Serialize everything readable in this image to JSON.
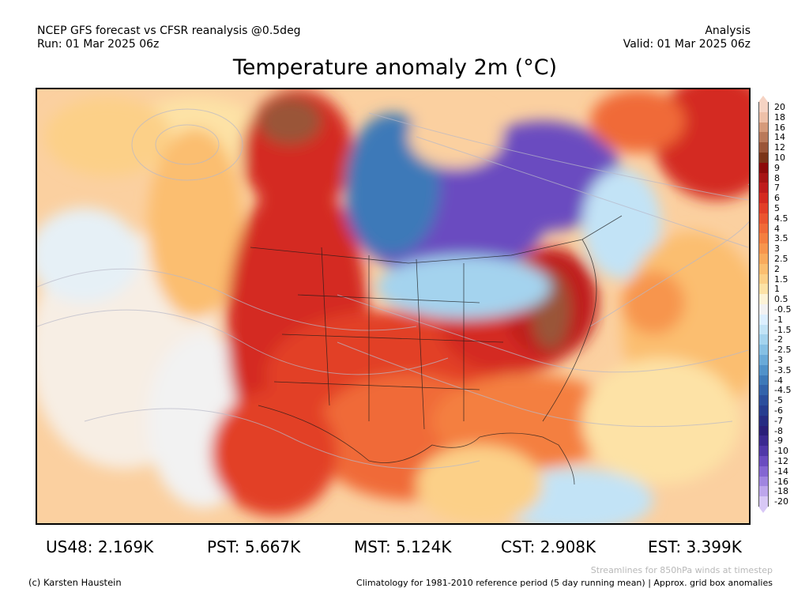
{
  "header": {
    "model_line": "NCEP GFS forecast vs CFSR reanalysis @0.5deg",
    "run_line": "Run: 01 Mar 2025 06z",
    "type_line": "Analysis",
    "valid_line": "Valid: 01 Mar 2025 06z"
  },
  "title": "Temperature anomaly 2m (°C)",
  "colorbar": {
    "levels": [
      {
        "label": "20",
        "color": "#f6d3c3"
      },
      {
        "label": "18",
        "color": "#eec0a8"
      },
      {
        "label": "16",
        "color": "#d59a7a"
      },
      {
        "label": "14",
        "color": "#b9795a"
      },
      {
        "label": "12",
        "color": "#9a5538"
      },
      {
        "label": "10",
        "color": "#7a3418"
      },
      {
        "label": "9",
        "color": "#8c0a0a"
      },
      {
        "label": "8",
        "color": "#a61414"
      },
      {
        "label": "7",
        "color": "#bf1c1c"
      },
      {
        "label": "6",
        "color": "#d42a20"
      },
      {
        "label": "5",
        "color": "#e23f28"
      },
      {
        "label": "4.5",
        "color": "#ea5530"
      },
      {
        "label": "4",
        "color": "#f06a38"
      },
      {
        "label": "3.5",
        "color": "#f47f40"
      },
      {
        "label": "3",
        "color": "#f7954d"
      },
      {
        "label": "2.5",
        "color": "#f9aa5c"
      },
      {
        "label": "2",
        "color": "#fbbe70"
      },
      {
        "label": "1.5",
        "color": "#fcd088"
      },
      {
        "label": "1",
        "color": "#fde2a6"
      },
      {
        "label": "0.5",
        "color": "#fdf3d6"
      },
      {
        "label": "-0.5",
        "color": "#f2f2f2"
      },
      {
        "label": "-1",
        "color": "#dcefff"
      },
      {
        "label": "-1.5",
        "color": "#c2e3f6"
      },
      {
        "label": "-2",
        "color": "#a4d3ee"
      },
      {
        "label": "-2.5",
        "color": "#86c0e4"
      },
      {
        "label": "-3",
        "color": "#6aaad8"
      },
      {
        "label": "-3.5",
        "color": "#5192c9"
      },
      {
        "label": "-4",
        "color": "#3e79b8"
      },
      {
        "label": "-4.5",
        "color": "#3363aa"
      },
      {
        "label": "-5",
        "color": "#2b4e9c"
      },
      {
        "label": "-6",
        "color": "#263d8f"
      },
      {
        "label": "-7",
        "color": "#262c82"
      },
      {
        "label": "-8",
        "color": "#2a1f78"
      },
      {
        "label": "-9",
        "color": "#3b2a90"
      },
      {
        "label": "-10",
        "color": "#5038a8"
      },
      {
        "label": "-12",
        "color": "#6a4cc0"
      },
      {
        "label": "-14",
        "color": "#8466d2"
      },
      {
        "label": "-16",
        "color": "#a085e0"
      },
      {
        "label": "-18",
        "color": "#bda6ec"
      },
      {
        "label": "-20",
        "color": "#d8c8f6"
      }
    ]
  },
  "stats": [
    {
      "label": "US48: 2.169K"
    },
    {
      "label": "PST: 5.667K"
    },
    {
      "label": "MST: 5.124K"
    },
    {
      "label": "CST: 2.908K"
    },
    {
      "label": "EST: 3.399K"
    }
  ],
  "footer": {
    "credit": "(c) Karsten Haustein",
    "streamlines_note": "Streamlines for 850hPa winds at timestep",
    "climatology_note": "Climatology for 1981-2010 reference period (5 day running mean) | Approx. grid box anomalies"
  }
}
